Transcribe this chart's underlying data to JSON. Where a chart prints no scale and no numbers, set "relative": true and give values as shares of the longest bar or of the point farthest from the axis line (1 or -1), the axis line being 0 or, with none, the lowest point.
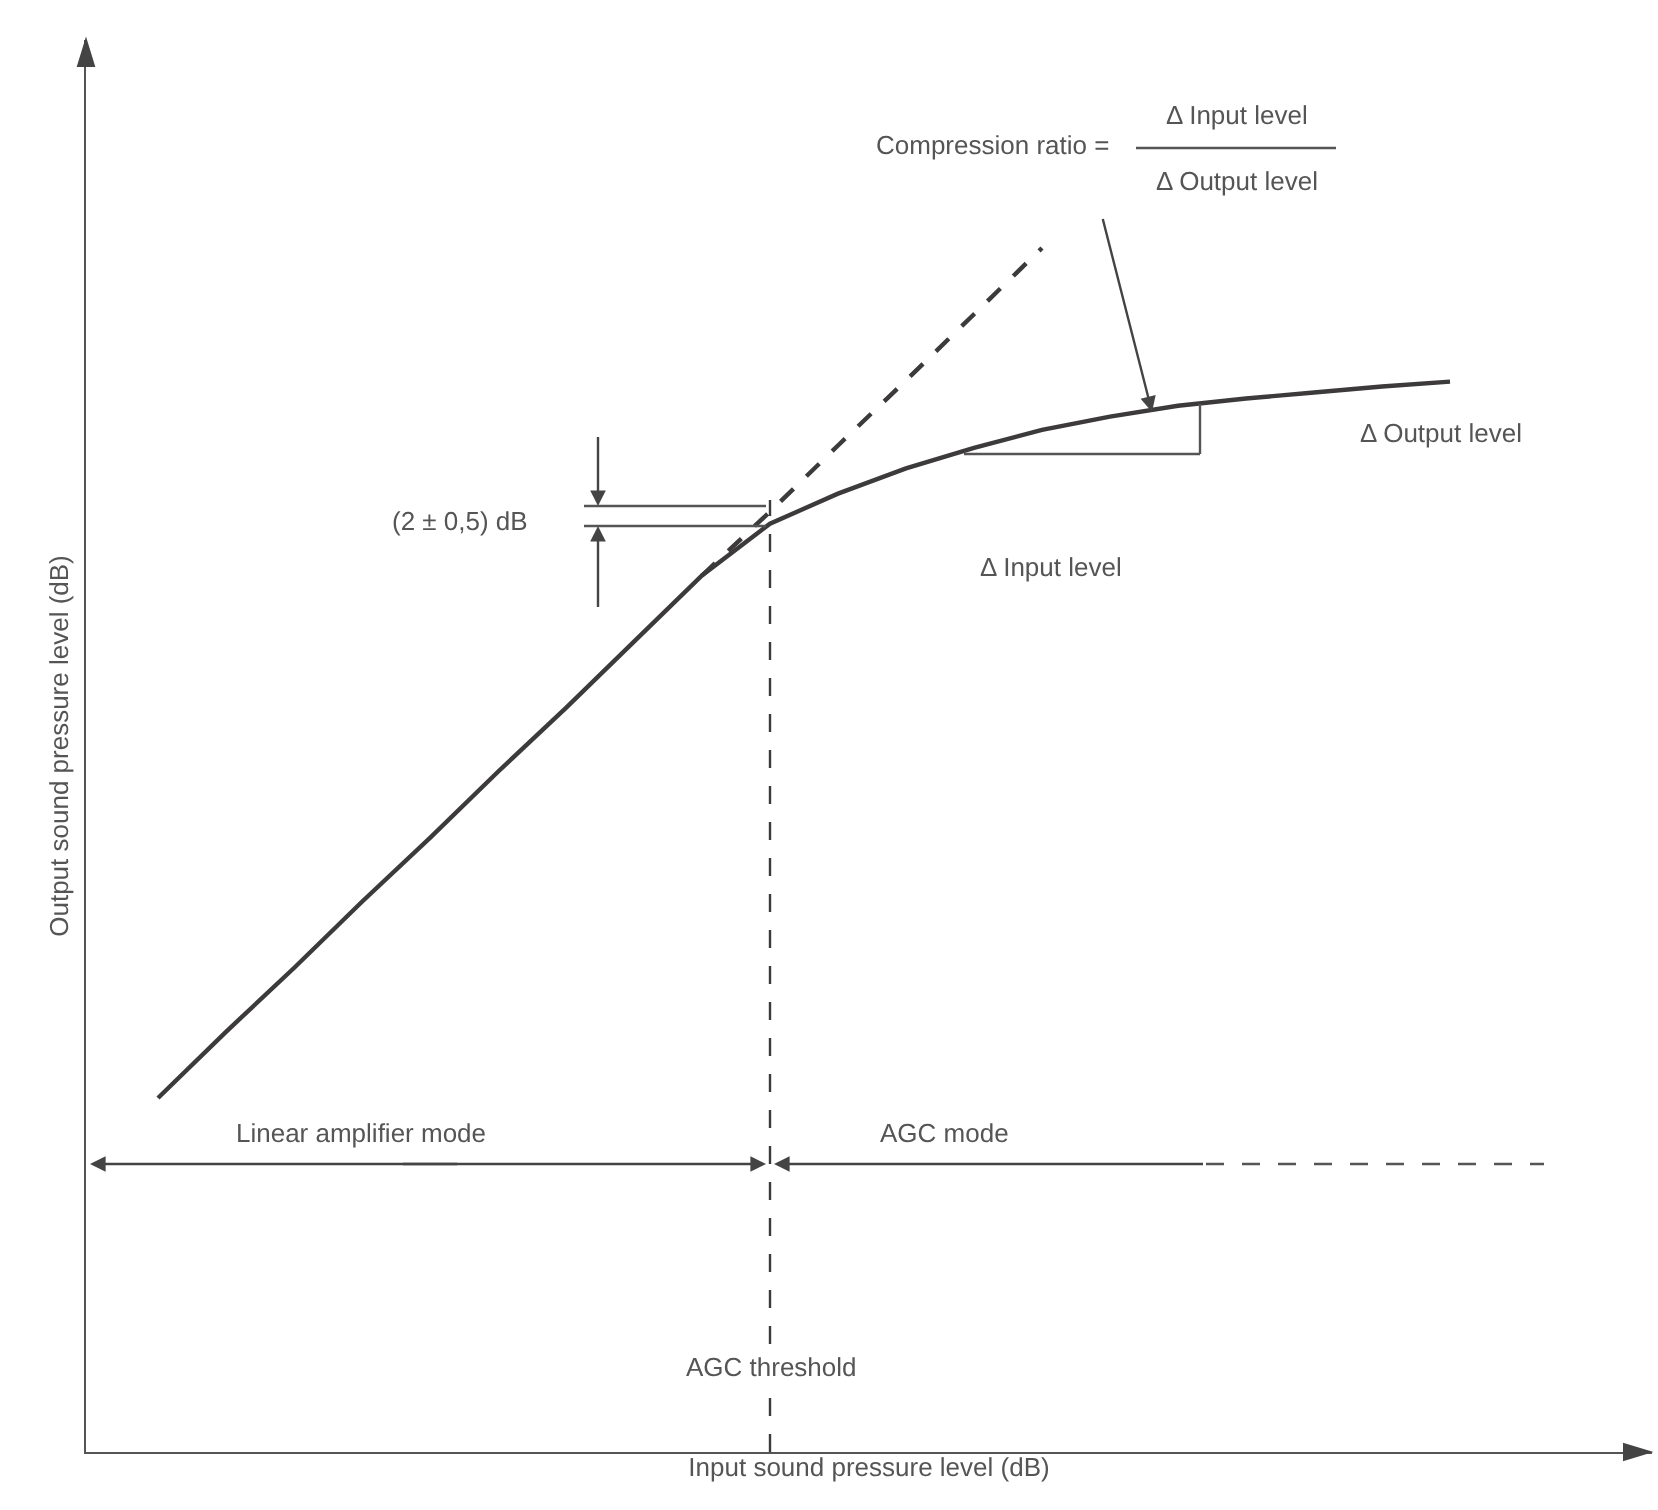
{
  "chart_data": {
    "type": "line",
    "relative": true,
    "xlabel": "Input sound pressure level (dB)",
    "ylabel": "Output sound pressure level (dB)",
    "categories": [
      null,
      null,
      null,
      null,
      null,
      null,
      null,
      null,
      null,
      null,
      null,
      null,
      null,
      null,
      null,
      null,
      null,
      null,
      null,
      null
    ],
    "series": [
      {
        "color": "#3c3a3a",
        "line_style": "solid",
        "values": [
          0.294,
          0.349,
          0.402,
          0.457,
          0.51,
          0.565,
          0.618,
          0.673,
          0.728,
          0.771,
          0.796,
          0.817,
          0.834,
          0.849,
          0.86,
          0.869,
          0.875,
          0.88,
          0.885,
          0.889
        ]
      },
      {
        "color": "#3c3a3a",
        "line_style": "dashed",
        "values": [
          null,
          null,
          null,
          null,
          null,
          null,
          null,
          null,
          0.728,
          0.781,
          0.836,
          0.89,
          0.945,
          1,
          null,
          null,
          null,
          null,
          null,
          null
        ]
      }
    ],
    "annotations": [
      "Compression ratio =",
      "Δ Input level",
      "Δ Output level",
      "Δ Output level",
      "Δ Input level",
      "(2 ± 0,5) dB",
      "Linear amplifier mode",
      "AGC mode",
      "AGC threshold"
    ],
    "marker": "none"
  }
}
